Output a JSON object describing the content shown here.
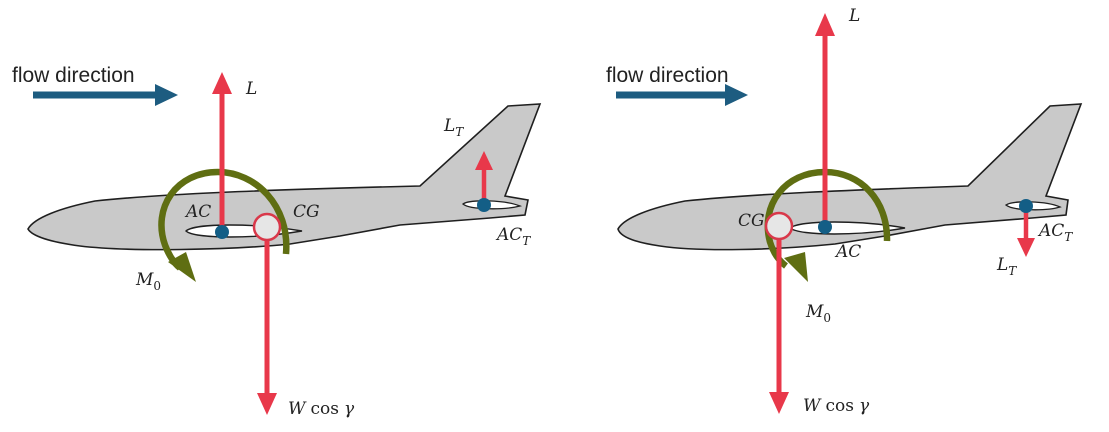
{
  "colors": {
    "fuselage": "#c9c9c9",
    "outline": "#1f1f1f",
    "force_arrow": "#e8384a",
    "moment_arrow": "#5f6e12",
    "flow_arrow": "#1d5c80",
    "point_dot": "#135e86",
    "cg_fill": "#e6e6e6",
    "cg_ring": "#d9384a"
  },
  "icons": [
    "airplane-silhouette",
    "straight-arrow",
    "curved-moment-arrow"
  ],
  "left": {
    "flow_label": "flow direction",
    "lift_label": "L",
    "ac_label": "AC",
    "cg_label": "CG",
    "moment_label": "M",
    "moment_sub": "0",
    "tail_lift_label": "L",
    "tail_lift_sub": "T",
    "tail_ac_label": "AC",
    "tail_ac_sub": "T",
    "weight_label_w": "W",
    "weight_label_cos": "cos",
    "weight_label_gamma": "γ"
  },
  "right": {
    "flow_label": "flow direction",
    "lift_label": "L",
    "ac_label": "AC",
    "cg_label": "CG",
    "moment_label": "M",
    "moment_sub": "0",
    "tail_lift_label": "L",
    "tail_lift_sub": "T",
    "tail_ac_label": "AC",
    "tail_ac_sub": "T",
    "weight_label_w": "W",
    "weight_label_cos": "cos",
    "weight_label_gamma": "γ"
  }
}
